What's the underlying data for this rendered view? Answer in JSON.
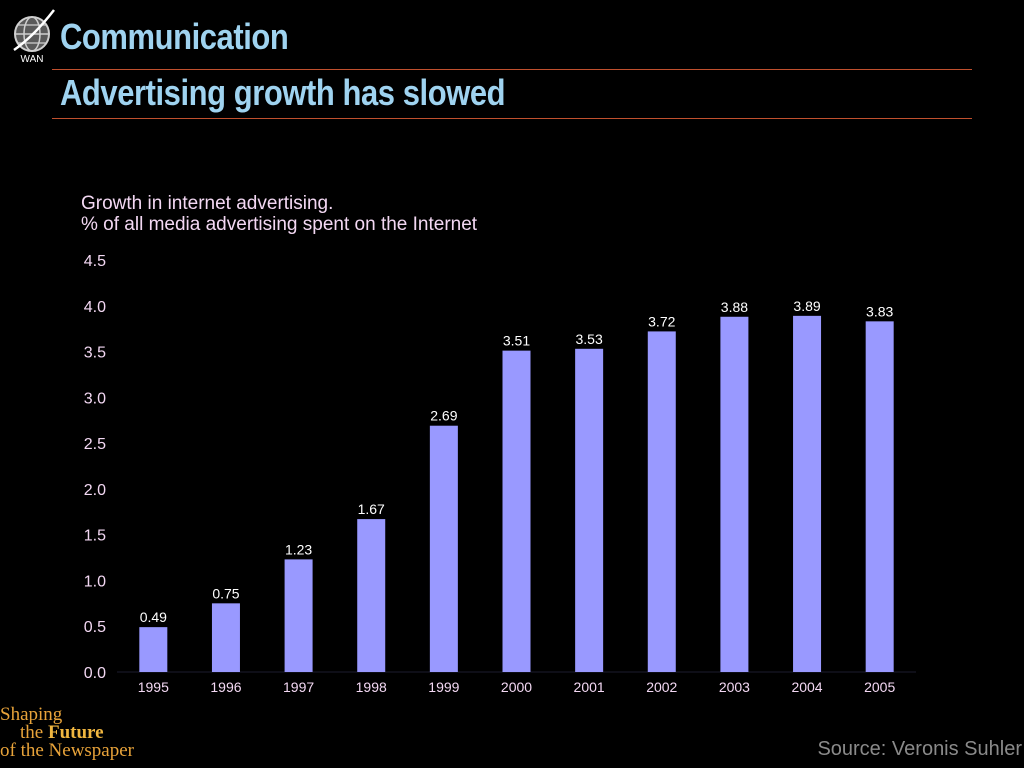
{
  "header": {
    "logo_text": "WAN",
    "title": "Communication",
    "subtitle": "Advertising growth has slowed"
  },
  "chart_data": {
    "type": "bar",
    "title_line1": "Growth in internet advertising.",
    "title_line2": "% of all media advertising spent on the Internet",
    "xlabel": "",
    "ylabel": "",
    "categories": [
      "1995",
      "1996",
      "1997",
      "1998",
      "1999",
      "2000",
      "2001",
      "2002",
      "2003",
      "2004",
      "2005"
    ],
    "values": [
      0.49,
      0.75,
      1.23,
      1.67,
      2.69,
      3.51,
      3.53,
      3.72,
      3.88,
      3.89,
      3.83
    ],
    "ylim": [
      0,
      4.5
    ],
    "yticks": [
      "0.0",
      "0.5",
      "1.0",
      "1.5",
      "2.0",
      "2.5",
      "3.0",
      "3.5",
      "4.0",
      "4.5"
    ],
    "grid": false,
    "legend": "none",
    "bar_color": "#9999ff"
  },
  "footer": {
    "tagline_1": "Shaping",
    "tagline_2a": "the",
    "tagline_2b": "Future",
    "tagline_3": "of the Newspaper",
    "source": "Source: Veronis Suhler"
  }
}
